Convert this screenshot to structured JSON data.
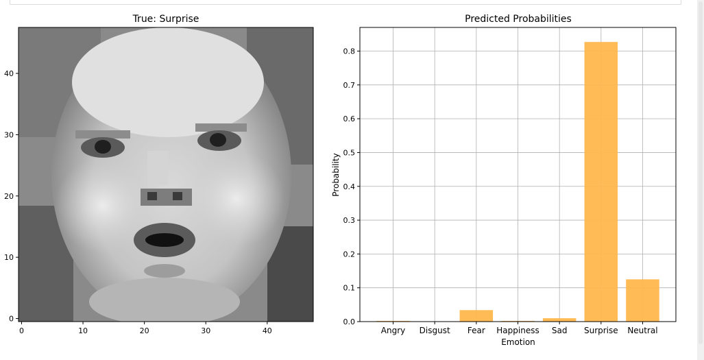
{
  "chart_data": [
    {
      "type": "image",
      "title": "True: Surprise",
      "description": "48x48 grayscale face image",
      "xticks": [
        0,
        10,
        20,
        30,
        40
      ],
      "yticks": [
        0,
        10,
        20,
        30,
        40
      ],
      "xlim": [
        -0.5,
        47.5
      ],
      "ylim": [
        47.5,
        -0.5
      ]
    },
    {
      "type": "bar",
      "title": "Predicted Probabilities",
      "xlabel": "Emotion",
      "ylabel": "Probability",
      "categories": [
        "Angry",
        "Disgust",
        "Fear",
        "Happiness",
        "Sad",
        "Surprise",
        "Neutral"
      ],
      "values": [
        0.002,
        0.0005,
        0.034,
        0.002,
        0.01,
        0.827,
        0.125
      ],
      "ylim": [
        0,
        0.87
      ],
      "yticks": [
        "0.0",
        "0.1",
        "0.2",
        "0.3",
        "0.4",
        "0.5",
        "0.6",
        "0.7",
        "0.8"
      ],
      "grid": true,
      "color": "#ffb74d"
    }
  ]
}
